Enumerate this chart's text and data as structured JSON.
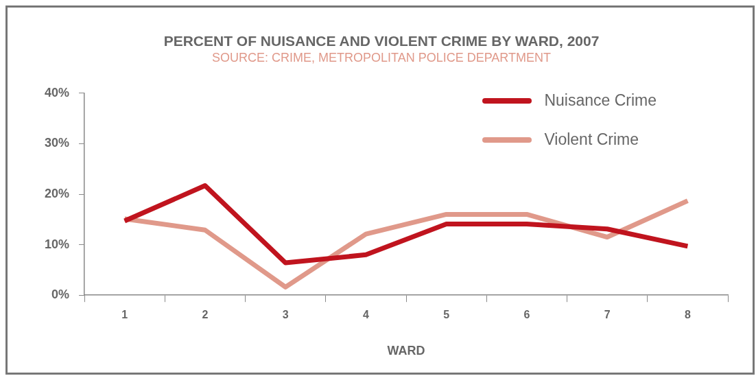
{
  "chart_data": {
    "type": "line",
    "title": "PERCENT OF NUISANCE AND VIOLENT CRIME BY WARD, 2007",
    "subtitle": "SOURCE: CRIME, METROPOLITAN POLICE DEPARTMENT",
    "xlabel": "WARD",
    "categories": [
      "1",
      "2",
      "3",
      "4",
      "5",
      "6",
      "7",
      "8"
    ],
    "series": [
      {
        "name": "Nuisance Crime",
        "color": "#c0141e",
        "values": [
          14.7,
          21.7,
          6.4,
          8,
          14.1,
          14.1,
          13.1,
          9.7
        ]
      },
      {
        "name": "Violent Crime",
        "color": "#e0998a",
        "values": [
          15.1,
          12.9,
          1.6,
          12.1,
          16,
          16,
          11.5,
          18.7
        ]
      }
    ],
    "ylim": [
      0,
      40
    ],
    "yticks": [
      {
        "value": 0,
        "label": "0%"
      },
      {
        "value": 10,
        "label": "10%"
      },
      {
        "value": 20,
        "label": "20%"
      },
      {
        "value": 30,
        "label": "30%"
      },
      {
        "value": 40,
        "label": "40%"
      }
    ],
    "grid": false,
    "legend": "top right",
    "marker": "none",
    "line_style": "solid"
  }
}
